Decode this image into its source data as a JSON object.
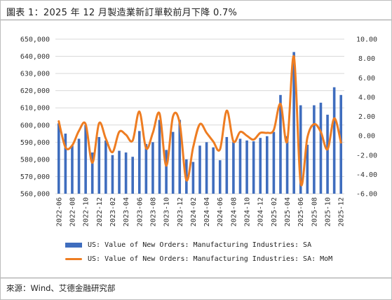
{
  "title": "圖表 1：2025 年 12 月製造業新訂單較前月下降 0.7%",
  "source": "來源：Wind、艾德金融研究部",
  "colors": {
    "bar": "#3f6dbe",
    "line": "#ee7d22",
    "grid": "#d9d9d9"
  },
  "chart_data": {
    "type": "bar+line",
    "categories": [
      "2022-06",
      "2022-07",
      "2022-08",
      "2022-09",
      "2022-10",
      "2022-11",
      "2022-12",
      "2023-01",
      "2023-02",
      "2023-03",
      "2023-04",
      "2023-05",
      "2023-06",
      "2023-07",
      "2023-08",
      "2023-09",
      "2023-10",
      "2023-11",
      "2023-12",
      "2024-01",
      "2024-02",
      "2024-03",
      "2024-04",
      "2024-05",
      "2024-06",
      "2024-07",
      "2024-08",
      "2024-09",
      "2024-10",
      "2024-11",
      "2024-12",
      "2025-01",
      "2025-02",
      "2025-03",
      "2025-04",
      "2025-05",
      "2025-06",
      "2025-07",
      "2025-08",
      "2025-09",
      "2025-10",
      "2025-11",
      "2025-12"
    ],
    "xtick_labels": [
      "2022-06",
      "2022-08",
      "2022-10",
      "2022-12",
      "2023-02",
      "2023-04",
      "2023-06",
      "2023-08",
      "2023-10",
      "2023-12",
      "2024-02",
      "2024-04",
      "2024-06",
      "2024-08",
      "2024-10",
      "2024-12",
      "2025-02",
      "2025-04",
      "2025-06",
      "2025-08",
      "2025-10",
      "2025-12"
    ],
    "series": [
      {
        "name": "US: Value of New Orders: Manufacturing Industries: SA",
        "type": "bar",
        "axis": "left",
        "values": [
          601000,
          595000,
          588000,
          592000,
          600000,
          584000,
          593000,
          591000,
          582500,
          585000,
          584000,
          581500,
          596500,
          589000,
          590000,
          603000,
          585500,
          596000,
          603000,
          580000,
          578500,
          588000,
          590000,
          587000,
          579500,
          593000,
          590000,
          592000,
          591000,
          590500,
          592500,
          593500,
          596000,
          617500,
          593500,
          642500,
          611500,
          588500,
          611500,
          613000,
          606000,
          622000,
          617500
        ]
      },
      {
        "name": "US: Value of New Orders: Manufacturing Industries: SA: MoM",
        "type": "line",
        "axis": "right",
        "values": [
          1.5,
          -1.2,
          -1.0,
          0.5,
          1.2,
          -2.8,
          1.3,
          -0.3,
          -1.7,
          0.4,
          0.1,
          -0.5,
          2.5,
          -1.3,
          0.3,
          2.3,
          -3.1,
          2.0,
          1.3,
          -4.6,
          -1.2,
          1.2,
          0.3,
          -0.6,
          -1.4,
          2.6,
          -0.6,
          0.4,
          0.0,
          -0.4,
          0.3,
          0.3,
          0.6,
          3.3,
          -0.6,
          8.2,
          -4.9,
          -0.2,
          1.2,
          0.4,
          -1.4,
          1.8,
          -0.7
        ]
      }
    ],
    "y_left": {
      "min": 560000,
      "max": 650000,
      "step": 10000,
      "ticks": [
        "560,000",
        "570,000",
        "580,000",
        "590,000",
        "600,000",
        "610,000",
        "620,000",
        "630,000",
        "640,000",
        "650,000"
      ]
    },
    "y_right": {
      "min": -6,
      "max": 10,
      "step": 2,
      "ticks": [
        "-6.00",
        "-4.00",
        "-2.00",
        "0.00",
        "2.00",
        "4.00",
        "6.00",
        "8.00",
        "10.00"
      ]
    },
    "grid": true,
    "legend_position": "bottom"
  }
}
